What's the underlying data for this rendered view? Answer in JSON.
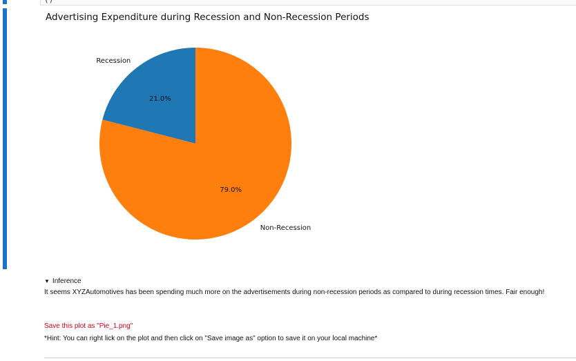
{
  "top_cell": {
    "input_text": "()"
  },
  "chart_data": {
    "type": "pie",
    "title": "Advertising Expenditure during Recession and Non-Recession Periods",
    "labels": [
      "Recession",
      "Non-Recession"
    ],
    "values": [
      21.0,
      79.0
    ],
    "percent_labels": [
      "21.0%",
      "79.0%"
    ],
    "colors": [
      "#1f77b4",
      "#ff7f0e"
    ],
    "start_angle_deg": 90,
    "direction": "counterclockwise",
    "legend": "none"
  },
  "markdown": {
    "inference_summary": "Inference",
    "inference_text": "It seems XYZAutomotives has been spending much more on the advertisements during non-recession periods as compared to during recession times. Fair enough!",
    "save_instruction": "Save this plot as \"Pie_1.png\"",
    "hint": "*Hint: You can right lick on the plot and then click on \"Save image as\" option to save it on your local machine*"
  }
}
